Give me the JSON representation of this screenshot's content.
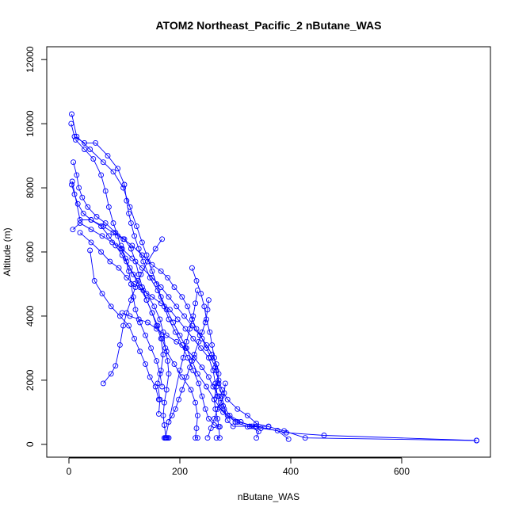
{
  "chart_data": {
    "type": "line",
    "title": "ATOM2 Northeast_Pacific_2 nButane_WAS",
    "xlabel": "nButane_WAS",
    "ylabel": "Altitude (m)",
    "xlim": [
      -40,
      760
    ],
    "ylim": [
      -400,
      12400
    ],
    "x_ticks": [
      0,
      200,
      400,
      600
    ],
    "y_ticks": [
      0,
      2000,
      4000,
      6000,
      8000,
      10000,
      12000
    ],
    "grid": false,
    "markers": "open-circle",
    "color": "#0000ff",
    "series": [
      {
        "values": [
          [
            5,
            10300
          ],
          [
            14,
            9600
          ],
          [
            38,
            9200
          ],
          [
            62,
            8800
          ],
          [
            80,
            8500
          ],
          [
            98,
            8000
          ],
          [
            110,
            7400
          ],
          [
            122,
            6800
          ],
          [
            132,
            6300
          ],
          [
            140,
            5900
          ],
          [
            150,
            5400
          ],
          [
            158,
            5000
          ],
          [
            166,
            4600
          ],
          [
            176,
            4200
          ],
          [
            188,
            3800
          ],
          [
            200,
            3400
          ],
          [
            212,
            3000
          ],
          [
            222,
            2600
          ],
          [
            232,
            2200
          ],
          [
            248,
            1800
          ],
          [
            262,
            1400
          ],
          [
            278,
            1000
          ],
          [
            304,
            700
          ],
          [
            338,
            560
          ],
          [
            392,
            360
          ],
          [
            460,
            280
          ],
          [
            735,
            120
          ]
        ]
      },
      {
        "values": [
          [
            4,
            10000
          ],
          [
            10,
            9600
          ],
          [
            28,
            9400
          ],
          [
            48,
            9400
          ],
          [
            70,
            9000
          ],
          [
            88,
            8600
          ],
          [
            100,
            8100
          ],
          [
            104,
            7600
          ],
          [
            108,
            7200
          ],
          [
            112,
            6900
          ],
          [
            118,
            6500
          ],
          [
            126,
            6100
          ],
          [
            134,
            5700
          ],
          [
            146,
            5200
          ],
          [
            160,
            4800
          ],
          [
            172,
            4300
          ],
          [
            180,
            3900
          ],
          [
            192,
            3500
          ],
          [
            204,
            3100
          ],
          [
            214,
            2700
          ],
          [
            224,
            2300
          ],
          [
            234,
            1900
          ],
          [
            240,
            1500
          ],
          [
            246,
            1100
          ],
          [
            252,
            800
          ],
          [
            262,
            600
          ],
          [
            272,
            550
          ]
        ]
      },
      {
        "values": [
          [
            5,
            8100
          ],
          [
            10,
            7800
          ],
          [
            16,
            7500
          ],
          [
            26,
            7200
          ],
          [
            40,
            7000
          ],
          [
            58,
            6800
          ],
          [
            72,
            6500
          ],
          [
            84,
            6200
          ],
          [
            96,
            5900
          ],
          [
            110,
            5500
          ],
          [
            124,
            5100
          ],
          [
            140,
            4700
          ],
          [
            154,
            4300
          ],
          [
            164,
            3900
          ],
          [
            170,
            3500
          ],
          [
            174,
            3000
          ],
          [
            178,
            2600
          ],
          [
            180,
            2200
          ],
          [
            176,
            1700
          ],
          [
            172,
            1300
          ],
          [
            170,
            900
          ],
          [
            172,
            600
          ],
          [
            175,
            200
          ],
          [
            178,
            200
          ]
        ]
      },
      {
        "values": [
          [
            8,
            8800
          ],
          [
            14,
            8400
          ],
          [
            18,
            8000
          ],
          [
            24,
            7700
          ],
          [
            34,
            7400
          ],
          [
            50,
            7100
          ],
          [
            66,
            6900
          ],
          [
            84,
            6600
          ],
          [
            100,
            6400
          ],
          [
            112,
            6100
          ],
          [
            120,
            5700
          ],
          [
            126,
            5300
          ],
          [
            132,
            4900
          ],
          [
            140,
            4500
          ],
          [
            150,
            4100
          ],
          [
            160,
            3700
          ],
          [
            168,
            3300
          ],
          [
            176,
            2900
          ],
          [
            190,
            2500
          ],
          [
            204,
            2100
          ],
          [
            220,
            1700
          ],
          [
            228,
            1300
          ],
          [
            232,
            900
          ],
          [
            230,
            500
          ],
          [
            228,
            200
          ],
          [
            232,
            200
          ]
        ]
      },
      {
        "values": [
          [
            12,
            9500
          ],
          [
            28,
            9200
          ],
          [
            44,
            8900
          ],
          [
            58,
            8400
          ],
          [
            66,
            7900
          ],
          [
            72,
            7400
          ],
          [
            80,
            6900
          ],
          [
            88,
            6500
          ],
          [
            94,
            6100
          ],
          [
            104,
            5700
          ],
          [
            116,
            5300
          ],
          [
            128,
            4900
          ],
          [
            140,
            4500
          ],
          [
            150,
            4100
          ],
          [
            158,
            3700
          ],
          [
            166,
            3300
          ],
          [
            170,
            2800
          ],
          [
            166,
            2300
          ],
          [
            160,
            1900
          ],
          [
            164,
            1400
          ],
          [
            162,
            950
          ]
        ]
      },
      {
        "values": [
          [
            6,
            8200
          ],
          [
            20,
            7000
          ],
          [
            40,
            7000
          ],
          [
            62,
            6800
          ],
          [
            80,
            6600
          ],
          [
            98,
            6400
          ],
          [
            114,
            6200
          ],
          [
            132,
            5900
          ],
          [
            150,
            5600
          ],
          [
            166,
            5400
          ],
          [
            178,
            5200
          ],
          [
            190,
            4900
          ],
          [
            204,
            4600
          ],
          [
            214,
            4300
          ],
          [
            222,
            3900
          ],
          [
            230,
            3600
          ],
          [
            240,
            3300
          ],
          [
            248,
            3000
          ],
          [
            256,
            2700
          ],
          [
            264,
            2400
          ],
          [
            270,
            2000
          ],
          [
            276,
            1700
          ],
          [
            286,
            1400
          ],
          [
            304,
            1100
          ],
          [
            322,
            900
          ],
          [
            338,
            650
          ],
          [
            360,
            550
          ],
          [
            388,
            420
          ],
          [
            426,
            200
          ],
          [
            735,
            120
          ]
        ]
      },
      {
        "values": [
          [
            7,
            6700
          ],
          [
            20,
            6900
          ],
          [
            40,
            6700
          ],
          [
            60,
            6500
          ],
          [
            78,
            6300
          ],
          [
            96,
            6100
          ],
          [
            114,
            5800
          ],
          [
            132,
            5500
          ],
          [
            150,
            5200
          ],
          [
            166,
            4900
          ],
          [
            180,
            4600
          ],
          [
            194,
            4300
          ],
          [
            208,
            4000
          ],
          [
            222,
            3700
          ],
          [
            236,
            3400
          ],
          [
            248,
            3100
          ],
          [
            258,
            2800
          ],
          [
            266,
            2500
          ],
          [
            270,
            2200
          ],
          [
            266,
            1800
          ],
          [
            262,
            1400
          ],
          [
            264,
            1100
          ],
          [
            268,
            800
          ],
          [
            270,
            550
          ],
          [
            272,
            200
          ],
          [
            266,
            200
          ]
        ]
      },
      {
        "values": [
          [
            38,
            6050
          ],
          [
            46,
            5100
          ],
          [
            60,
            4700
          ],
          [
            76,
            4300
          ],
          [
            92,
            4000
          ],
          [
            108,
            3700
          ],
          [
            118,
            3300
          ],
          [
            128,
            2900
          ],
          [
            138,
            2500
          ],
          [
            146,
            2100
          ],
          [
            156,
            1800
          ],
          [
            162,
            1400
          ]
        ]
      },
      {
        "values": [
          [
            62,
            1900
          ],
          [
            76,
            2200
          ],
          [
            84,
            2450
          ],
          [
            92,
            3100
          ],
          [
            98,
            3700
          ],
          [
            104,
            4100
          ],
          [
            112,
            4500
          ],
          [
            120,
            4900
          ],
          [
            130,
            5300
          ],
          [
            142,
            5700
          ],
          [
            156,
            6100
          ],
          [
            168,
            6400
          ]
        ]
      },
      {
        "values": [
          [
            20,
            6600
          ],
          [
            40,
            6300
          ],
          [
            58,
            6000
          ],
          [
            74,
            5700
          ],
          [
            90,
            5500
          ],
          [
            104,
            5200
          ],
          [
            118,
            5000
          ],
          [
            134,
            4800
          ],
          [
            150,
            4600
          ],
          [
            166,
            4400
          ],
          [
            182,
            4200
          ],
          [
            196,
            3900
          ],
          [
            210,
            3600
          ],
          [
            224,
            3300
          ],
          [
            238,
            3000
          ],
          [
            252,
            2700
          ],
          [
            260,
            2300
          ],
          [
            264,
            1900
          ],
          [
            268,
            1500
          ],
          [
            272,
            1150
          ],
          [
            286,
            900
          ],
          [
            300,
            700
          ],
          [
            322,
            550
          ],
          [
            336,
            550
          ],
          [
            346,
            500
          ],
          [
            376,
            430
          ],
          [
            396,
            160
          ]
        ]
      },
      {
        "values": [
          [
            94,
            6200
          ],
          [
            102,
            5800
          ],
          [
            108,
            5400
          ],
          [
            112,
            5000
          ],
          [
            116,
            4600
          ],
          [
            120,
            4200
          ],
          [
            128,
            3800
          ],
          [
            138,
            3400
          ],
          [
            148,
            3000
          ],
          [
            158,
            2600
          ],
          [
            164,
            2200
          ],
          [
            168,
            1800
          ]
        ]
      },
      {
        "values": [
          [
            222,
            5500
          ],
          [
            230,
            5100
          ],
          [
            238,
            4700
          ],
          [
            244,
            4300
          ],
          [
            248,
            3900
          ],
          [
            254,
            3500
          ],
          [
            258,
            3100
          ],
          [
            262,
            2700
          ],
          [
            266,
            2300
          ],
          [
            270,
            1900
          ],
          [
            276,
            1500
          ],
          [
            280,
            1100
          ],
          [
            286,
            750
          ],
          [
            296,
            560
          ],
          [
            326,
            560
          ],
          [
            342,
            400
          ],
          [
            338,
            200
          ]
        ]
      },
      {
        "values": [
          [
            96,
            4100
          ],
          [
            110,
            4000
          ],
          [
            126,
            3900
          ],
          [
            142,
            3800
          ],
          [
            158,
            3600
          ],
          [
            176,
            3400
          ],
          [
            194,
            3200
          ],
          [
            210,
            3000
          ],
          [
            226,
            2700
          ],
          [
            240,
            2400
          ],
          [
            252,
            2100
          ],
          [
            260,
            1800
          ],
          [
            270,
            1500
          ],
          [
            278,
            1200
          ],
          [
            290,
            900
          ],
          [
            310,
            700
          ],
          [
            330,
            560
          ],
          [
            360,
            560
          ]
        ]
      },
      {
        "values": [
          [
            180,
            700
          ],
          [
            186,
            900
          ],
          [
            192,
            1100
          ],
          [
            198,
            1400
          ],
          [
            204,
            1700
          ],
          [
            212,
            2100
          ],
          [
            218,
            2400
          ],
          [
            226,
            2800
          ],
          [
            234,
            3200
          ],
          [
            240,
            3500
          ],
          [
            246,
            3800
          ],
          [
            250,
            4200
          ],
          [
            252,
            4500
          ]
        ]
      },
      {
        "values": [
          [
            180,
            200
          ],
          [
            176,
            200
          ],
          [
            172,
            200
          ],
          [
            174,
            200
          ],
          [
            200,
            2300
          ],
          [
            206,
            2700
          ],
          [
            212,
            3200
          ],
          [
            218,
            3600
          ],
          [
            224,
            4000
          ],
          [
            228,
            4400
          ],
          [
            232,
            4800
          ]
        ]
      },
      {
        "values": [
          [
            250,
            200
          ],
          [
            256,
            500
          ],
          [
            262,
            800
          ],
          [
            268,
            1100
          ],
          [
            274,
            1300
          ],
          [
            280,
            1600
          ],
          [
            282,
            1900
          ]
        ]
      }
    ]
  }
}
